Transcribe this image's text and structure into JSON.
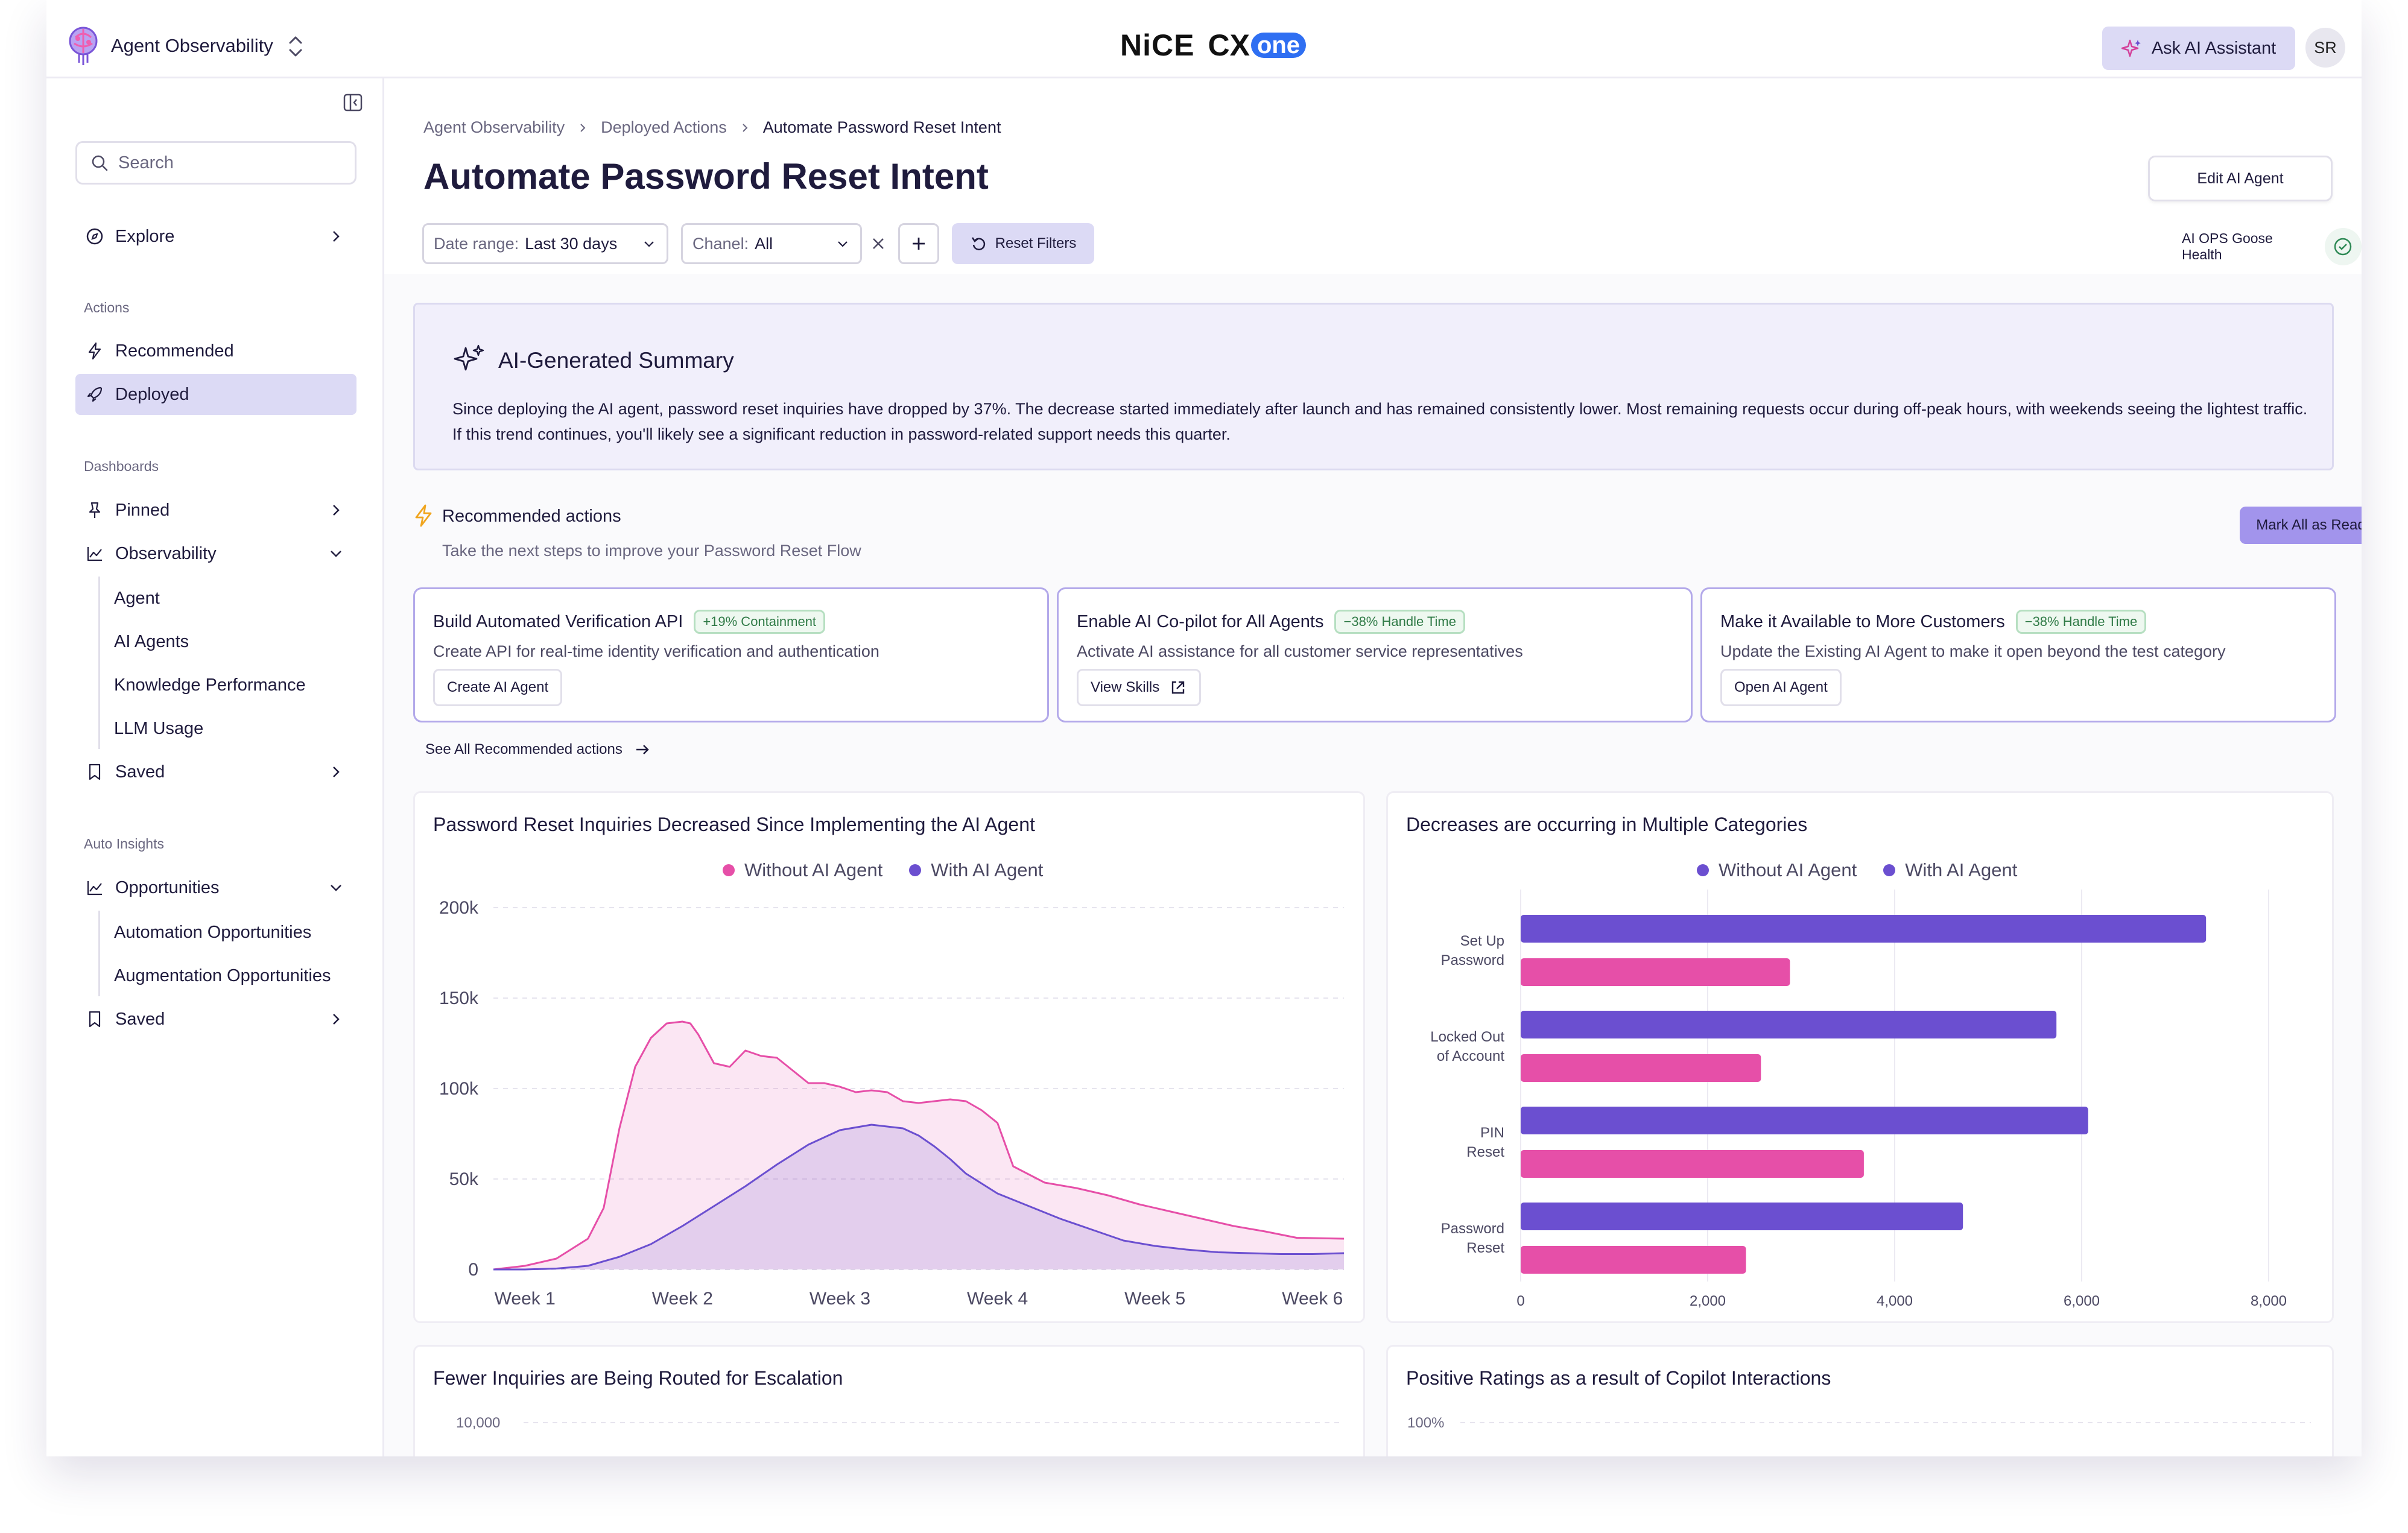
{
  "header": {
    "app_name": "Agent Observability",
    "logo": {
      "nice": "NiCE",
      "cx": "CX",
      "one": "one"
    },
    "ask_ai_label": "Ask AI Assistant",
    "avatar_initials": "SR"
  },
  "sidebar": {
    "search_placeholder": "Search",
    "explore_label": "Explore",
    "sections": {
      "actions": "Actions",
      "dashboards": "Dashboards",
      "auto_insights": "Auto Insights"
    },
    "actions_items": [
      "Recommended",
      "Deployed"
    ],
    "dashboards_items": {
      "pinned": "Pinned",
      "observability": "Observability",
      "observability_sub": [
        "Agent",
        "AI Agents",
        "Knowledge Performance",
        "LLM Usage"
      ],
      "saved": "Saved"
    },
    "insights_items": {
      "opportunities": "Opportunities",
      "opportunities_sub": [
        "Automation Opportunities",
        "Augmentation Opportunities"
      ],
      "saved": "Saved"
    }
  },
  "breadcrumb": [
    "Agent Observability",
    "Deployed Actions",
    "Automate Password Reset Intent"
  ],
  "page_title": "Automate Password Reset Intent",
  "edit_button": "Edit AI Agent",
  "filters": {
    "date_label": "Date range:",
    "date_value": "Last 30 days",
    "channel_label": "Chanel:",
    "channel_value": "All",
    "reset_label": "Reset Filters"
  },
  "health_label": "AI OPS Goose Health",
  "summary": {
    "title": "AI-Generated Summary",
    "text": "Since deploying the AI agent, password reset inquiries have dropped by 37%. The decrease started immediately after launch and has remained consistently lower. Most remaining requests occur during off-peak hours, with weekends seeing the lightest traffic. If this trend continues, you'll likely see a significant reduction in password-related support needs this quarter."
  },
  "recommended": {
    "title": "Recommended actions",
    "subtitle": "Take the next steps to improve your Password Reset Flow",
    "mark_all_label": "Mark All as Read",
    "see_all_label": "See All Recommended actions",
    "cards": [
      {
        "title": "Build Automated Verification API",
        "tag": "+19% Containment",
        "desc": "Create API for real-time identity verification and authentication",
        "button": "Create AI Agent"
      },
      {
        "title": "Enable AI Co-pilot for All Agents",
        "tag": "−38% Handle Time",
        "desc": "Activate AI assistance for all customer service representatives",
        "button": "View Skills"
      },
      {
        "title": "Make it Available to More Customers",
        "tag": "−38% Handle Time",
        "desc": "Update the Existing AI Agent to make it open beyond the test category",
        "button": "Open AI Agent"
      }
    ]
  },
  "colors": {
    "accent": "#6b4fd0",
    "pink": "#e64fa8",
    "purple_bar": "#6b4fd0",
    "pink_bar": "#e64fa8"
  },
  "chart_data": [
    {
      "type": "area",
      "title": "Password Reset Inquiries Decreased Since Implementing the AI Agent",
      "x_ticks": [
        "Week 1",
        "Week 2",
        "Week 3",
        "Week 4",
        "Week 5",
        "Week 6"
      ],
      "y_ticks": [
        "0",
        "50k",
        "100k",
        "150k",
        "200k"
      ],
      "ylim": [
        0,
        200000
      ],
      "xlim": [
        0.8,
        6.2
      ],
      "series": [
        {
          "name": "Without AI Agent",
          "color": "#e64fa8",
          "x": [
            0.8,
            1.0,
            1.2,
            1.4,
            1.5,
            1.6,
            1.7,
            1.8,
            1.9,
            2.0,
            2.05,
            2.1,
            2.2,
            2.3,
            2.4,
            2.5,
            2.6,
            2.7,
            2.8,
            2.9,
            3.0,
            3.1,
            3.2,
            3.3,
            3.4,
            3.5,
            3.6,
            3.7,
            3.8,
            3.9,
            4.0,
            4.1,
            4.3,
            4.5,
            4.7,
            4.9,
            5.1,
            5.3,
            5.5,
            5.7,
            5.9,
            6.2
          ],
          "y": [
            0,
            2000,
            6000,
            17000,
            34000,
            78000,
            112000,
            128000,
            136000,
            137000,
            136000,
            130000,
            114000,
            112000,
            121000,
            118000,
            117000,
            110000,
            103000,
            103000,
            101000,
            98000,
            99000,
            98000,
            93000,
            92000,
            93000,
            94000,
            93000,
            88000,
            81000,
            57000,
            48000,
            45000,
            41000,
            36000,
            32000,
            28000,
            24000,
            21000,
            17500,
            17000
          ]
        },
        {
          "name": "With AI Agent",
          "color": "#6b4fd0",
          "x": [
            0.8,
            1.0,
            1.2,
            1.4,
            1.6,
            1.8,
            2.0,
            2.2,
            2.4,
            2.6,
            2.8,
            3.0,
            3.2,
            3.4,
            3.5,
            3.6,
            3.7,
            3.8,
            4.0,
            4.2,
            4.4,
            4.6,
            4.8,
            5.0,
            5.2,
            5.4,
            5.6,
            5.8,
            6.0,
            6.2
          ],
          "y": [
            0,
            0,
            500,
            2000,
            7000,
            14000,
            24000,
            35000,
            46000,
            58000,
            69000,
            77000,
            80000,
            78000,
            74000,
            68000,
            61000,
            53000,
            42000,
            35000,
            28000,
            22000,
            16000,
            13000,
            11000,
            9500,
            9000,
            8500,
            8500,
            9000
          ]
        }
      ]
    },
    {
      "type": "bar",
      "orientation": "horizontal",
      "title": "Decreases are occurring in Multiple Categories",
      "categories": [
        "Set Up Password",
        "Locked Out of Account",
        "PIN Reset",
        "Password Reset"
      ],
      "x_ticks": [
        "0",
        "2,000",
        "4,000",
        "6,000",
        "8,000"
      ],
      "xlim": [
        0,
        8000
      ],
      "series": [
        {
          "name": "Without AI Agent",
          "color": "#6b4fd0",
          "values": [
            7330,
            5730,
            6070,
            4730
          ]
        },
        {
          "name": "With AI Agent",
          "color": "#e64fa8",
          "values": [
            2880,
            2570,
            3670,
            2410
          ]
        }
      ]
    },
    {
      "type": "bar",
      "title": "Fewer Inquiries are Being Routed for Escalation",
      "y_ticks": [
        "10,000"
      ]
    },
    {
      "type": "line",
      "title": "Positive Ratings as a result of Copilot Interactions",
      "y_ticks": [
        "100%"
      ]
    }
  ]
}
